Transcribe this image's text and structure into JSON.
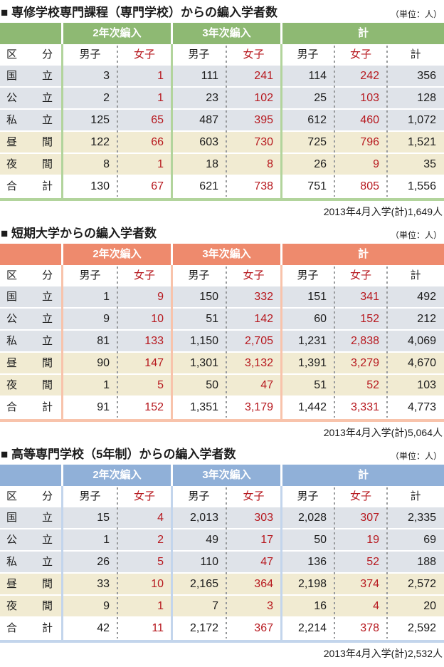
{
  "title_bullet": "■",
  "unit_label": "（単位：人）",
  "group_headers": [
    "2年次編入",
    "3年次編入",
    "計"
  ],
  "column_headers": {
    "category": "区 分",
    "male": "男子",
    "female": "女子",
    "total": "計"
  },
  "colors": {
    "table1_accent": "#8eb973",
    "table1_accent_light": "#b2d49c",
    "table2_accent": "#ee8a6d",
    "table2_accent_light": "#f8c3ab",
    "table3_accent": "#90b0d8",
    "table3_accent_light": "#c3d5ec",
    "row_gray": "#dfe3e9",
    "row_beige": "#f1ebd2",
    "female_red": "#b7191f"
  },
  "tables": [
    {
      "title": "専修学校専門課程（専門学校）からの編入学者数",
      "note": "2013年4月入学(計)1,649人",
      "rows": [
        {
          "label": "国 立",
          "values": [
            "3",
            "1",
            "111",
            "241",
            "114",
            "242",
            "356"
          ]
        },
        {
          "label": "公 立",
          "values": [
            "2",
            "1",
            "23",
            "102",
            "25",
            "103",
            "128"
          ]
        },
        {
          "label": "私 立",
          "values": [
            "125",
            "65",
            "487",
            "395",
            "612",
            "460",
            "1,072"
          ]
        },
        {
          "label": "昼 間",
          "values": [
            "122",
            "66",
            "603",
            "730",
            "725",
            "796",
            "1,521"
          ]
        },
        {
          "label": "夜 間",
          "values": [
            "8",
            "1",
            "18",
            "8",
            "26",
            "9",
            "35"
          ]
        },
        {
          "label": "合 計",
          "values": [
            "130",
            "67",
            "621",
            "738",
            "751",
            "805",
            "1,556"
          ]
        }
      ]
    },
    {
      "title": "短期大学からの編入学者数",
      "note": "2013年4月入学(計)5,064人",
      "rows": [
        {
          "label": "国 立",
          "values": [
            "1",
            "9",
            "150",
            "332",
            "151",
            "341",
            "492"
          ]
        },
        {
          "label": "公 立",
          "values": [
            "9",
            "10",
            "51",
            "142",
            "60",
            "152",
            "212"
          ]
        },
        {
          "label": "私 立",
          "values": [
            "81",
            "133",
            "1,150",
            "2,705",
            "1,231",
            "2,838",
            "4,069"
          ]
        },
        {
          "label": "昼 間",
          "values": [
            "90",
            "147",
            "1,301",
            "3,132",
            "1,391",
            "3,279",
            "4,670"
          ]
        },
        {
          "label": "夜 間",
          "values": [
            "1",
            "5",
            "50",
            "47",
            "51",
            "52",
            "103"
          ]
        },
        {
          "label": "合 計",
          "values": [
            "91",
            "152",
            "1,351",
            "3,179",
            "1,442",
            "3,331",
            "4,773"
          ]
        }
      ]
    },
    {
      "title": "高等専門学校（5年制）からの編入学者数",
      "note": "2013年4月入学(計)2,532人",
      "rows": [
        {
          "label": "国 立",
          "values": [
            "15",
            "4",
            "2,013",
            "303",
            "2,028",
            "307",
            "2,335"
          ]
        },
        {
          "label": "公 立",
          "values": [
            "1",
            "2",
            "49",
            "17",
            "50",
            "19",
            "69"
          ]
        },
        {
          "label": "私 立",
          "values": [
            "26",
            "5",
            "110",
            "47",
            "136",
            "52",
            "188"
          ]
        },
        {
          "label": "昼 間",
          "values": [
            "33",
            "10",
            "2,165",
            "364",
            "2,198",
            "374",
            "2,572"
          ]
        },
        {
          "label": "夜 間",
          "values": [
            "9",
            "1",
            "7",
            "3",
            "16",
            "4",
            "20"
          ]
        },
        {
          "label": "合 計",
          "values": [
            "42",
            "11",
            "2,172",
            "367",
            "2,214",
            "378",
            "2,592"
          ]
        }
      ]
    }
  ]
}
